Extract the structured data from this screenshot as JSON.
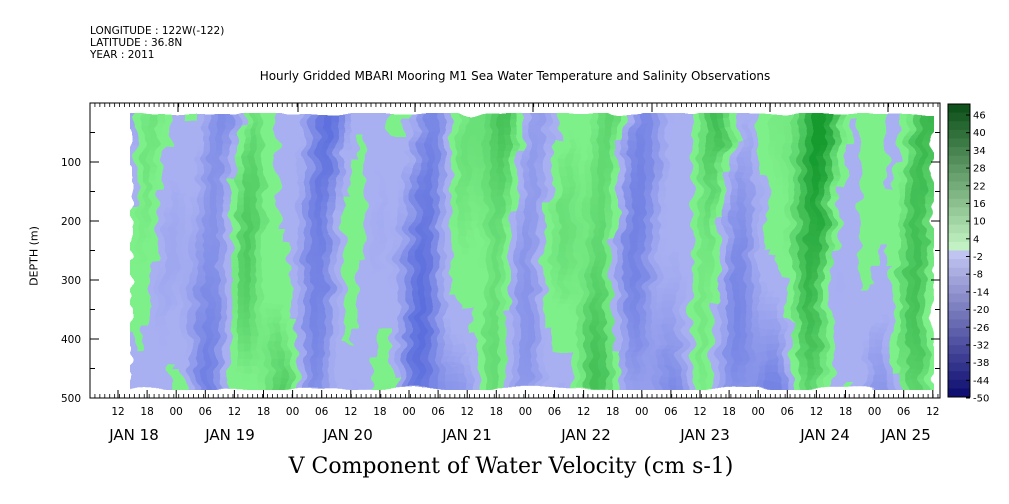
{
  "header": {
    "longitude": "LONGITUDE : 122W(-122)",
    "latitude": "LATITUDE : 36.8N",
    "year": "YEAR : 2011"
  },
  "chart_data": {
    "type": "heatmap",
    "title": "Hourly Gridded MBARI Mooring M1 Sea Water Temperature and Salinity Observations",
    "xlabel": "V Component of Water Velocity (cm s-1)",
    "ylabel": "DEPTH (m)",
    "ylim": [
      500,
      0
    ],
    "y_ticks": [
      100,
      200,
      300,
      400,
      500
    ],
    "x_hour_ticks": [
      "12",
      "18",
      "00",
      "06",
      "12",
      "18",
      "00",
      "06",
      "12",
      "18",
      "00",
      "06",
      "12",
      "18",
      "00",
      "06",
      "12",
      "18",
      "00",
      "06",
      "12",
      "18",
      "00",
      "06",
      "12",
      "18",
      "00",
      "06",
      "12",
      "18",
      "00",
      "06"
    ],
    "x_day_labels": [
      "JAN 18",
      "JAN 19",
      "JAN 20",
      "JAN 21",
      "JAN 22",
      "JAN 23",
      "JAN 24",
      "JAN 25"
    ],
    "colorbar": {
      "labels": [
        "46",
        "40",
        "34",
        "28",
        "22",
        "16",
        "10",
        "4",
        "-2",
        "-8",
        "-14",
        "-20",
        "-26",
        "-32",
        "-38",
        "-44",
        "-50"
      ],
      "range": [
        -50,
        50
      ]
    },
    "colors": {
      "negative": "#a9b0f2",
      "positive": "#7ef08a",
      "strong_negative": "#4a5fd8",
      "strong_positive": "#169a2e"
    }
  }
}
